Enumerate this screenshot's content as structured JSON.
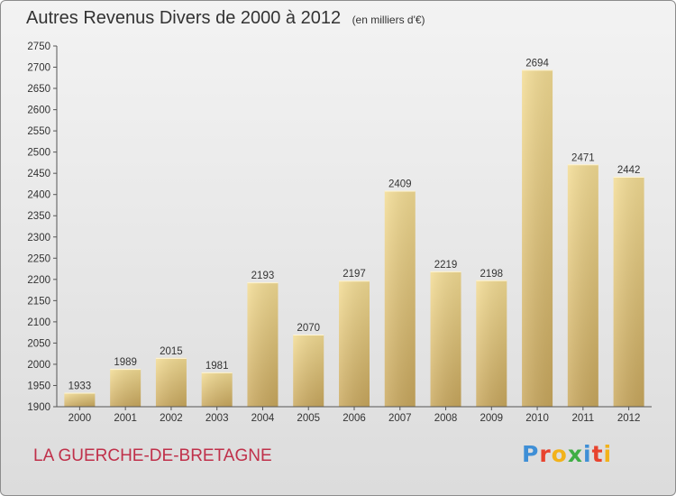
{
  "chart_data": {
    "type": "bar",
    "title": "Autres Revenus Divers de 2000 à 2012",
    "subtitle": "(en milliers d'€)",
    "categories": [
      "2000",
      "2001",
      "2002",
      "2003",
      "2004",
      "2005",
      "2006",
      "2007",
      "2008",
      "2009",
      "2010",
      "2011",
      "2012"
    ],
    "values": [
      1933,
      1989,
      2015,
      1981,
      2193,
      2070,
      2197,
      2409,
      2219,
      2198,
      2694,
      2471,
      2442
    ],
    "ylim": [
      1900,
      2750
    ],
    "yticks": [
      1900,
      1950,
      2000,
      2050,
      2100,
      2150,
      2200,
      2250,
      2300,
      2350,
      2400,
      2450,
      2500,
      2550,
      2600,
      2650,
      2700,
      2750
    ],
    "xlabel": "",
    "ylabel": "",
    "grid": false,
    "bar_color": "#e8cc7e"
  },
  "footer": {
    "location": "LA GUERCHE-DE-BRETAGNE",
    "brand_letters": [
      "P",
      "r",
      "o",
      "x",
      "i",
      "t",
      "i"
    ],
    "brand_colors": [
      "#3f8fd6",
      "#e8432e",
      "#f2b21a",
      "#3fae45",
      "#3f8fd6",
      "#e8432e",
      "#f2b21a"
    ]
  }
}
